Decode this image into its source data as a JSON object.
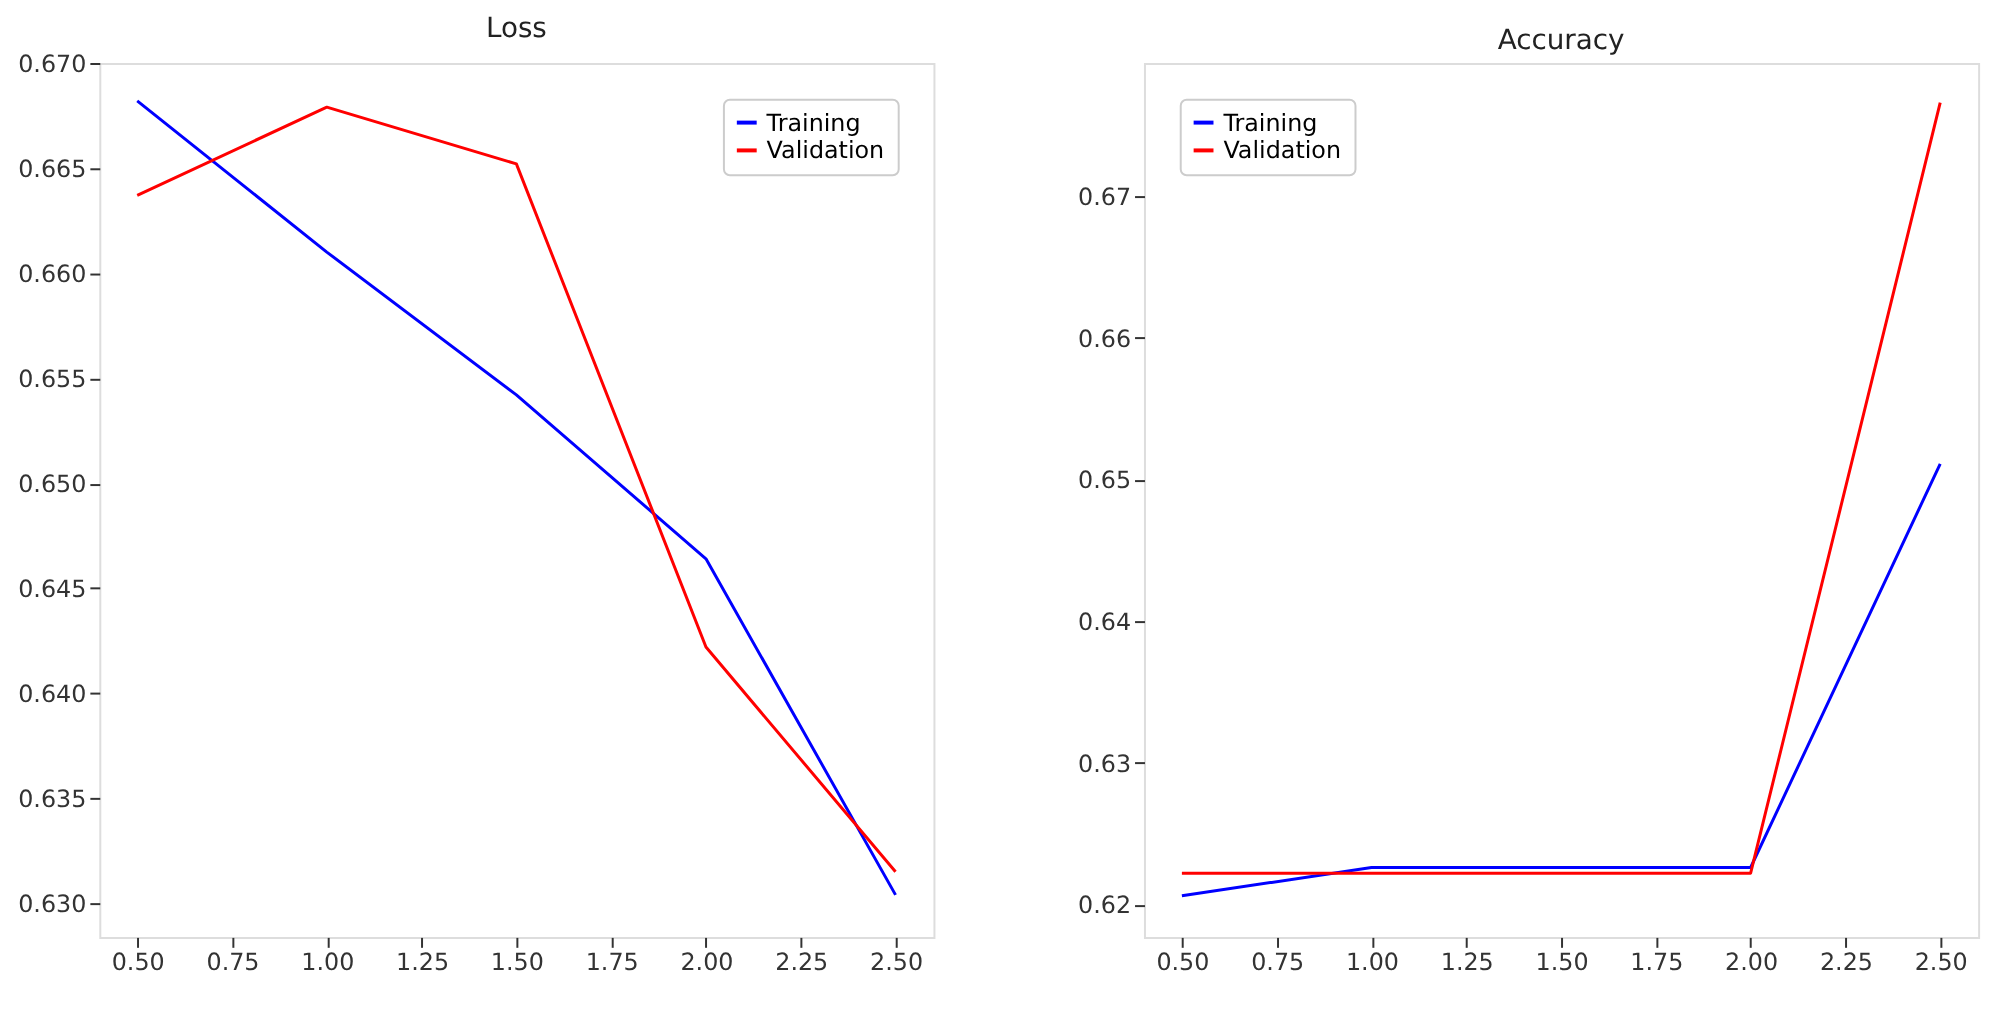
{
  "chart_data": [
    {
      "type": "line",
      "title": "Loss",
      "x": [
        0.5,
        1.0,
        1.5,
        2.0,
        2.5
      ],
      "series": [
        {
          "name": "Training",
          "color": "#0000ff",
          "values": [
            0.6682,
            0.661,
            0.6542,
            0.6464,
            0.6304
          ]
        },
        {
          "name": "Validation",
          "color": "#ff0000",
          "values": [
            0.6637,
            0.6679,
            0.6652,
            0.6422,
            0.6315
          ]
        }
      ],
      "xlim": [
        0.4,
        2.6
      ],
      "xticks": [
        {
          "value": 0.5,
          "label": "0.50"
        },
        {
          "value": 0.75,
          "label": "0.75"
        },
        {
          "value": 1.0,
          "label": "1.00"
        },
        {
          "value": 1.25,
          "label": "1.25"
        },
        {
          "value": 1.5,
          "label": "1.50"
        },
        {
          "value": 1.75,
          "label": "1.75"
        },
        {
          "value": 2.0,
          "label": "2.00"
        },
        {
          "value": 2.25,
          "label": "2.25"
        },
        {
          "value": 2.5,
          "label": "2.50"
        }
      ],
      "ylim": [
        0.6284,
        0.67
      ],
      "yticks": [
        {
          "value": 0.63,
          "label": "0.630"
        },
        {
          "value": 0.635,
          "label": "0.635"
        },
        {
          "value": 0.64,
          "label": "0.640"
        },
        {
          "value": 0.645,
          "label": "0.645"
        },
        {
          "value": 0.65,
          "label": "0.650"
        },
        {
          "value": 0.655,
          "label": "0.655"
        },
        {
          "value": 0.66,
          "label": "0.660"
        },
        {
          "value": 0.665,
          "label": "0.665"
        },
        {
          "value": 0.67,
          "label": "0.670"
        }
      ],
      "grid": false,
      "legend": "top right",
      "marker": "none",
      "line_style": "solid"
    },
    {
      "type": "line",
      "title": "Accuracy",
      "x": [
        0.5,
        1.0,
        1.5,
        2.0,
        2.5
      ],
      "series": [
        {
          "name": "Training",
          "color": "#0000ff",
          "values": [
            0.6206,
            0.6226,
            0.6226,
            0.6226,
            0.6511
          ]
        },
        {
          "name": "Validation",
          "color": "#ff0000",
          "values": [
            0.6222,
            0.6222,
            0.6222,
            0.6222,
            0.6766
          ]
        }
      ],
      "xlim": [
        0.4,
        2.6
      ],
      "xticks": [
        {
          "value": 0.5,
          "label": "0.50"
        },
        {
          "value": 0.75,
          "label": "0.75"
        },
        {
          "value": 1.0,
          "label": "1.00"
        },
        {
          "value": 1.25,
          "label": "1.25"
        },
        {
          "value": 1.5,
          "label": "1.50"
        },
        {
          "value": 1.75,
          "label": "1.75"
        },
        {
          "value": 2.0,
          "label": "2.00"
        },
        {
          "value": 2.25,
          "label": "2.25"
        },
        {
          "value": 2.5,
          "label": "2.50"
        }
      ],
      "ylim": [
        0.6177,
        0.6794
      ],
      "yticks": [
        0.62,
        0.63,
        0.64,
        0.65,
        0.66,
        0.67
      ],
      "grid": false,
      "legend": "top left",
      "marker": "none",
      "line_style": "solid"
    }
  ]
}
